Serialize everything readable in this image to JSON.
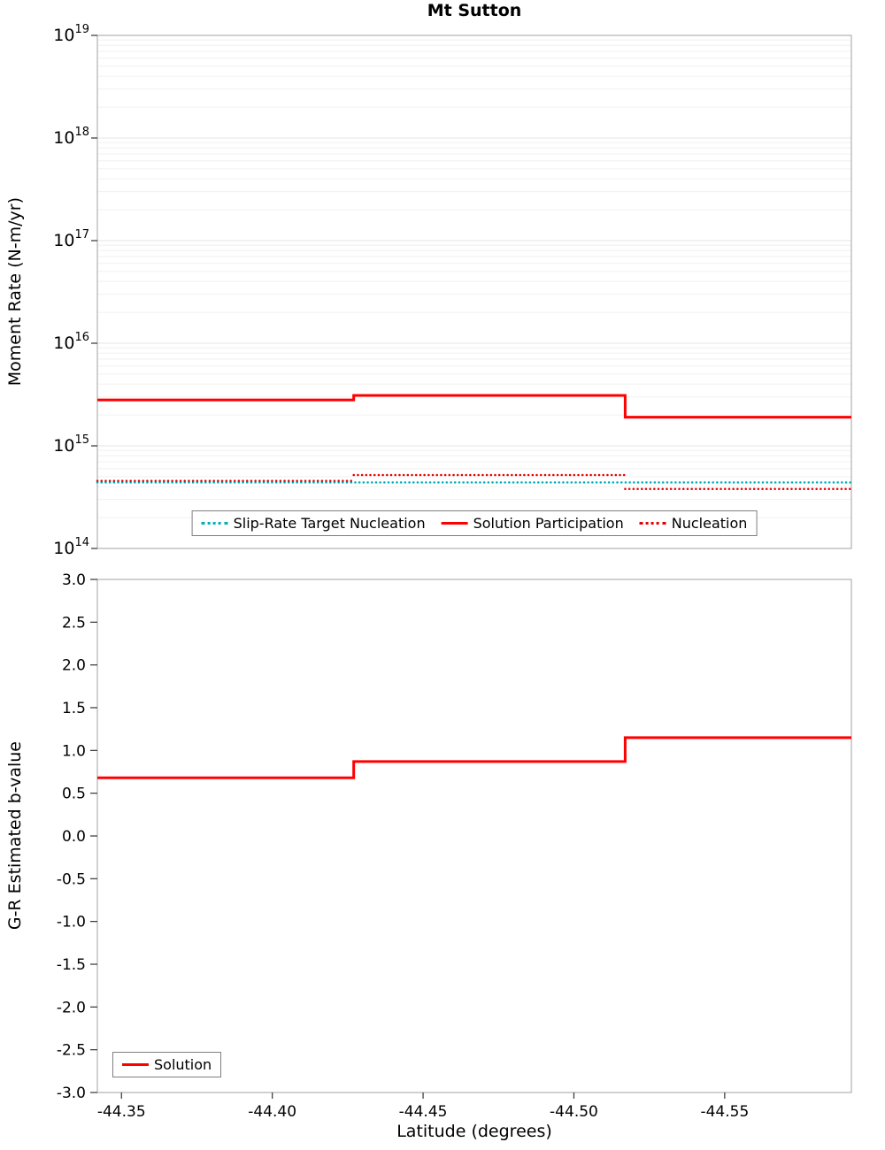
{
  "chart_data": [
    {
      "type": "line",
      "title": "Mt Sutton",
      "ylabel": "Moment Rate (N-m/yr)",
      "yscale": "log",
      "ylim": [
        100000000000000.0,
        1e+19
      ],
      "ytick_exponents": [
        14,
        15,
        16,
        17,
        18,
        19
      ],
      "xlim": [
        -44.342,
        -44.592
      ],
      "xticks": [
        -44.35,
        -44.4,
        -44.45,
        -44.5,
        -44.55
      ],
      "xtick_labels": [
        "-44.35",
        "-44.40",
        "-44.45",
        "-44.50",
        "-44.55"
      ],
      "grid": "minor-horizontal",
      "legend_position": "lower center",
      "series": [
        {
          "name": "Slip-Rate Target Nucleation",
          "color": "#00AFB9",
          "dash": "dot",
          "width": 2.5,
          "segments": [
            [
              -44.342,
              -44.592,
              440000000000000.0
            ]
          ]
        },
        {
          "name": "Solution Participation",
          "color": "#FF0000",
          "dash": "solid",
          "width": 3,
          "segments": [
            [
              -44.342,
              -44.427,
              2800000000000000.0
            ],
            [
              -44.427,
              -44.517,
              3100000000000000.0
            ],
            [
              -44.517,
              -44.592,
              1900000000000000.0
            ]
          ]
        },
        {
          "name": "Nucleation",
          "color": "#E60000",
          "dash": "dot",
          "width": 2.5,
          "segments": [
            [
              -44.342,
              -44.427,
              455000000000000.0
            ],
            [
              -44.427,
              -44.517,
              520000000000000.0
            ],
            [
              -44.517,
              -44.592,
              380000000000000.0
            ]
          ]
        }
      ]
    },
    {
      "type": "line",
      "ylabel": "G-R Estimated b-value",
      "xlabel": "Latitude (degrees)",
      "ylim": [
        -3.0,
        3.0
      ],
      "ytick_step": 0.5,
      "xlim": [
        -44.342,
        -44.592
      ],
      "xticks": [
        -44.35,
        -44.4,
        -44.45,
        -44.5,
        -44.55
      ],
      "xtick_labels": [
        "-44.35",
        "-44.40",
        "-44.45",
        "-44.50",
        "-44.55"
      ],
      "grid": "off",
      "legend_position": "lower left",
      "series": [
        {
          "name": "Solution",
          "color": "#FF0000",
          "dash": "solid",
          "width": 3,
          "segments": [
            [
              -44.342,
              -44.427,
              0.68
            ],
            [
              -44.427,
              -44.517,
              0.87
            ],
            [
              -44.517,
              -44.592,
              1.15
            ]
          ]
        }
      ]
    }
  ]
}
